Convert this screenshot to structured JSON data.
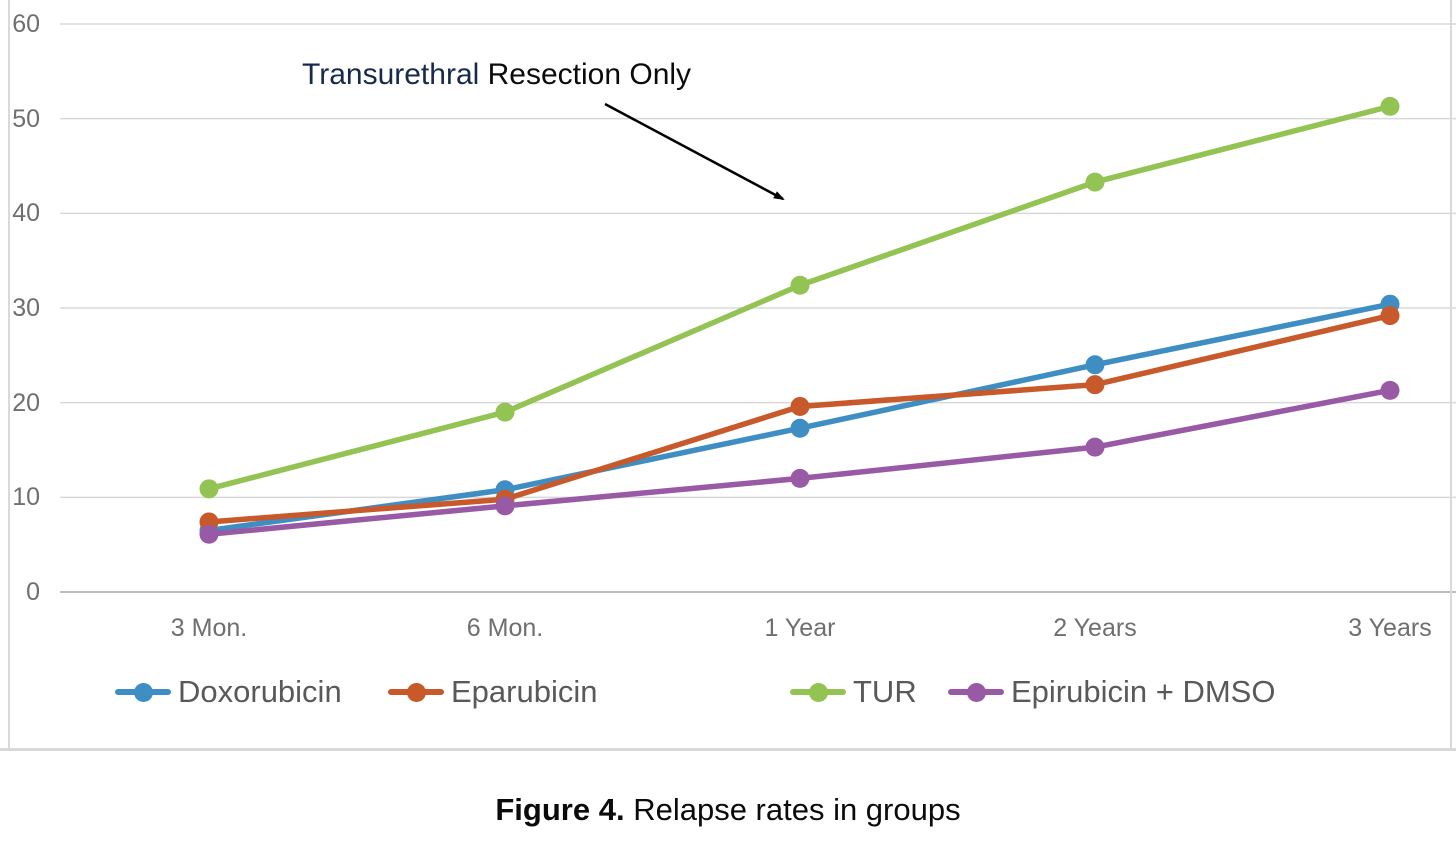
{
  "chart_data": {
    "type": "line",
    "categories": [
      "3 Mon.",
      "6 Mon.",
      "1 Year",
      "2 Years",
      "3 Years"
    ],
    "series": [
      {
        "name": "Doxorubicin",
        "color": "#3E8EC4",
        "values": [
          6.5,
          10.8,
          17.3,
          24.0,
          30.4
        ]
      },
      {
        "name": "Eparubicin",
        "color": "#C7592A",
        "values": [
          7.4,
          9.8,
          19.6,
          21.9,
          29.2
        ]
      },
      {
        "name": "TUR",
        "color": "#93C353",
        "values": [
          10.9,
          19.0,
          32.4,
          43.3,
          51.3
        ]
      },
      {
        "name": "Epirubicin + DMSO",
        "color": "#9859A5",
        "values": [
          6.1,
          9.1,
          12.0,
          15.3,
          21.3
        ]
      }
    ],
    "title": "",
    "xlabel": "",
    "ylabel": "",
    "ylim": [
      0,
      60
    ],
    "ytick_step": 10,
    "ytick_labels": [
      "60",
      "50",
      "40",
      "30",
      "20",
      "10",
      "0"
    ],
    "grid": true,
    "legend_position": "bottom",
    "annotation": {
      "text_primary": "Transurethral",
      "text_secondary": " Resection Only",
      "target_series": "TUR"
    },
    "colors": {
      "gridline": "#d9d9d9",
      "axis_line": "#bdbdbd",
      "axis_text": "#6f6f6f",
      "legend_text": "#595959",
      "annotation_primary": "#172a4e",
      "annotation_secondary": "#0b0b0b",
      "frame_border": "#d9d9d9",
      "arrow": "#000000"
    }
  },
  "caption": {
    "label": "Figure 4.",
    "text": " Relapse rates in groups"
  }
}
